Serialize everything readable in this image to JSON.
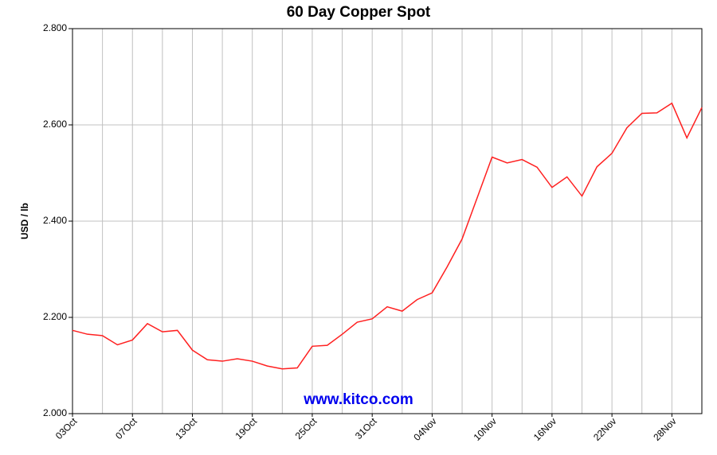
{
  "chart_data": {
    "type": "line",
    "title": "60 Day Copper Spot",
    "ylabel": "USD / lb",
    "watermark": "www.kitco.com",
    "categories": [
      "03Oct",
      null,
      null,
      null,
      "07Oct",
      null,
      null,
      null,
      "13Oct",
      null,
      null,
      null,
      "19Oct",
      null,
      null,
      null,
      "25Oct",
      null,
      null,
      null,
      "31Oct",
      null,
      null,
      null,
      "04Nov",
      null,
      null,
      null,
      "10Nov",
      null,
      null,
      null,
      "16Nov",
      null,
      null,
      null,
      "22Nov",
      null,
      null,
      null,
      "28Nov",
      null,
      null
    ],
    "values": [
      2.173,
      2.165,
      2.162,
      2.143,
      2.153,
      2.187,
      2.17,
      2.173,
      2.132,
      2.112,
      2.109,
      2.114,
      2.109,
      2.099,
      2.093,
      2.095,
      2.14,
      2.142,
      2.165,
      2.19,
      2.197,
      2.222,
      2.213,
      2.237,
      2.251,
      2.305,
      2.363,
      2.448,
      2.533,
      2.521,
      2.528,
      2.512,
      2.47,
      2.492,
      2.452,
      2.513,
      2.541,
      2.594,
      2.624,
      2.625,
      2.645,
      2.573,
      2.636
    ],
    "color": "#ff2020",
    "ylim": [
      2.0,
      2.8
    ],
    "yticks": [
      {
        "value": 2.0,
        "label": "2.000"
      },
      {
        "value": 2.2,
        "label": "2.200"
      },
      {
        "value": 2.4,
        "label": "2.400"
      },
      {
        "value": 2.6,
        "label": "2.600"
      },
      {
        "value": 2.8,
        "label": "2.800"
      }
    ],
    "grid": true
  }
}
